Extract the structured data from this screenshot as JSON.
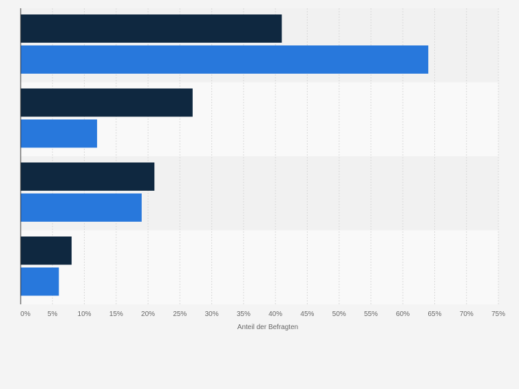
{
  "chart_data": {
    "type": "bar",
    "orientation": "horizontal",
    "categories": [
      "",
      "",
      "",
      ""
    ],
    "series": [
      {
        "values": [
          41,
          27,
          21,
          8
        ],
        "color": "#0f2840"
      },
      {
        "values": [
          64,
          12,
          19,
          6
        ],
        "color": "#2878dc"
      }
    ],
    "xlabel": "Anteil der Befragten",
    "xlim": [
      0,
      75
    ],
    "ticks": [
      "0%",
      "5%",
      "10%",
      "15%",
      "20%",
      "25%",
      "30%",
      "35%",
      "40%",
      "45%",
      "50%",
      "55%",
      "60%",
      "65%",
      "70%",
      "75%"
    ],
    "tick_step": 5,
    "grid": true,
    "legend": "none"
  },
  "colors": {
    "page_background": "#f4f4f4",
    "band_dark": "#f1f1f1",
    "band_light": "#f9f9f9",
    "gridline": "#d9d9d9",
    "axis": "#333333",
    "tick_text": "#666666"
  }
}
